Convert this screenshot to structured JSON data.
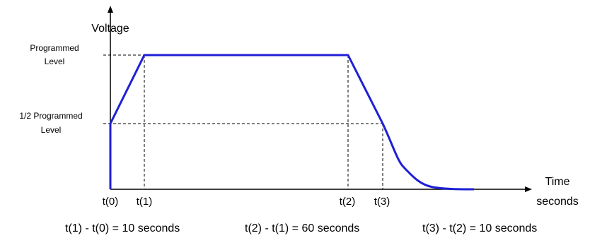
{
  "y_axis": {
    "label": "Voltage"
  },
  "x_axis": {
    "label_line1": "Time",
    "label_line2": "seconds"
  },
  "levels": {
    "programmed_line1": "Programmed",
    "programmed_line2": "Level",
    "half_line1": "1/2 Programmed",
    "half_line2": "Level"
  },
  "time_marks": [
    "t(0)",
    "t(1)",
    "t(2)",
    "t(3)"
  ],
  "notes": [
    "t(1) - t(0) = 10 seconds",
    "t(2) - t(1) = 60 seconds",
    "t(3) - t(2) = 10 seconds"
  ],
  "colors": {
    "curve": "#1f1fd6",
    "axes": "#000000",
    "guides": "#000000"
  }
}
